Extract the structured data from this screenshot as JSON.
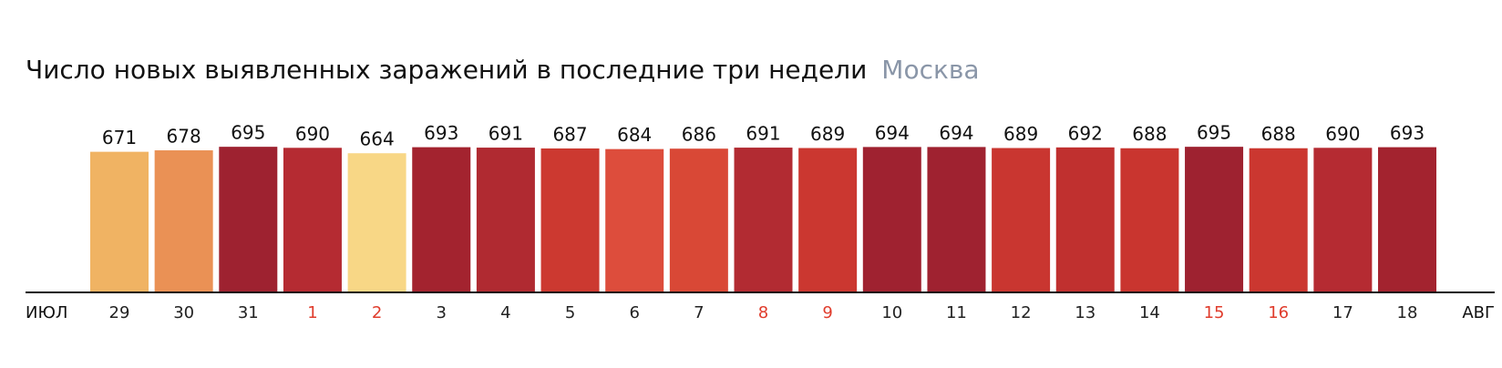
{
  "chart_data": {
    "type": "bar",
    "title": "Число новых выявленных заражений в последние три недели",
    "subtitle": "Москва",
    "axis_start_label": "ИЮЛ",
    "axis_end_label": "АВГ",
    "categories": [
      "29",
      "30",
      "31",
      "1",
      "2",
      "3",
      "4",
      "5",
      "6",
      "7",
      "8",
      "9",
      "10",
      "11",
      "12",
      "13",
      "14",
      "15",
      "16",
      "17",
      "18"
    ],
    "values": [
      671,
      678,
      695,
      690,
      664,
      693,
      691,
      687,
      684,
      686,
      691,
      689,
      694,
      694,
      689,
      692,
      688,
      695,
      688,
      690,
      693
    ],
    "colors": [
      "#f0b363",
      "#ea9155",
      "#9e2230",
      "#b52b32",
      "#f8d786",
      "#a3232f",
      "#b02a31",
      "#cc3930",
      "#dd4d3c",
      "#d94836",
      "#b22b32",
      "#cb3730",
      "#9f2230",
      "#9f2230",
      "#c93630",
      "#c0302f",
      "#c9352f",
      "#9e2230",
      "#cb3730",
      "#b52b32",
      "#a3232f"
    ],
    "category_colors": [
      "#222",
      "#222",
      "#222",
      "#e03c2c",
      "#e03c2c",
      "#222",
      "#222",
      "#222",
      "#222",
      "#222",
      "#e03c2c",
      "#e03c2c",
      "#222",
      "#222",
      "#222",
      "#222",
      "#222",
      "#e03c2c",
      "#e03c2c",
      "#222",
      "#222"
    ],
    "ylim": [
      0,
      700
    ]
  }
}
